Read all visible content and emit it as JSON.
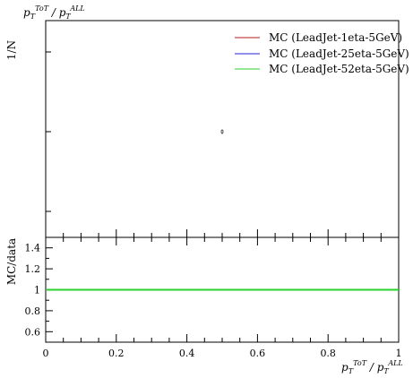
{
  "chart_data": [
    {
      "panel": "main",
      "type": "line",
      "title": "p_T^{ToT} / p_T^{ALL}",
      "title_parts": {
        "p1": "p",
        "sub1": "T",
        "sup1": "ToT",
        "sep": " / ",
        "p2": "p",
        "sub2": "T",
        "sup2": "ALL"
      },
      "ylabel": "1/N",
      "xlim": [
        0,
        1
      ],
      "legend_position": "top-right",
      "grid": false,
      "series": [
        {
          "name": "MC (LeadJet-1eta-5GeV)",
          "color": "#b31b1b"
        },
        {
          "name": "MC (LeadJet-25eta-5GeV)",
          "color": "#1f1fd8"
        },
        {
          "name": "MC (LeadJet-52eta-5GeV)",
          "color": "#2ad12a"
        }
      ],
      "marker": {
        "x": 0.5
      }
    },
    {
      "panel": "ratio",
      "type": "line",
      "ylabel": "MC/data",
      "xlabel_parts": {
        "p1": "p",
        "sub1": "T",
        "sup1": "ToT",
        "sep": " / ",
        "p2": "p",
        "sub2": "T",
        "sup2": "ALL"
      },
      "xlim": [
        0,
        1
      ],
      "ylim": [
        0.5,
        1.5
      ],
      "x_ticks": [
        0,
        0.2,
        0.4,
        0.6,
        0.8,
        1
      ],
      "x_tick_labels": [
        "0",
        "0.2",
        "0.4",
        "0.6",
        "0.8",
        "1"
      ],
      "y_ticks": [
        0.6,
        0.8,
        1.0,
        1.2,
        1.4
      ],
      "y_tick_labels": [
        "0.6",
        "0.8",
        "1",
        "1.2",
        "1.4"
      ],
      "reference_line": 1.0,
      "line_color": "#2ad12a",
      "grid": false
    }
  ]
}
